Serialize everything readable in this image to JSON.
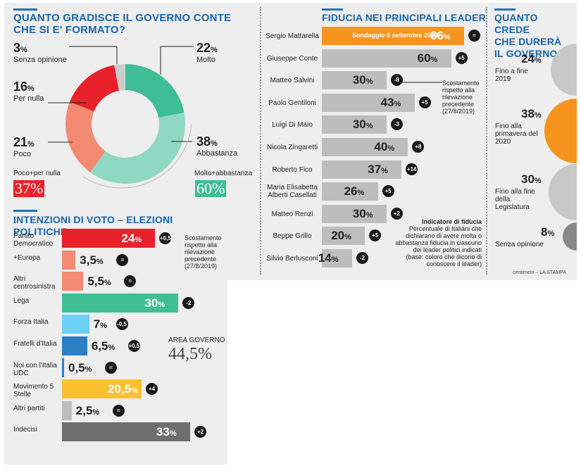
{
  "colors": {
    "accent": "#1565b0",
    "red": "#e8212b",
    "salmon": "#f28b72",
    "teal": "#3fbe96",
    "lightteal": "#8fd8c2",
    "orange": "#f7941d",
    "gray": "#bdbdbd",
    "yellow": "#fbc02d",
    "skyblue": "#6ccff6",
    "blue": "#2a7fc6",
    "darkgray": "#6d6e70"
  },
  "approval": {
    "title1": "QUANTO GRADISCE IL GOVERNO CONTE",
    "title2": "CHE SI E' FORMATO?",
    "items": [
      {
        "pct": "3",
        "label": "Senza opinione"
      },
      {
        "pct": "16",
        "label": "Per nulla"
      },
      {
        "pct": "21",
        "label": "Poco"
      },
      {
        "pct": "22",
        "label": "Molto"
      },
      {
        "pct": "38",
        "label": "Abbastanza"
      }
    ],
    "neg_label": "Poco+per nulla",
    "neg_total": "37%",
    "pos_label": "Molto+abbastanza",
    "pos_total": "60%",
    "pct_sign": "%"
  },
  "chart_data": [
    {
      "type": "pie",
      "title": "QUANTO GRADISCE IL GOVERNO CONTE CHE SI E' FORMATO?",
      "categories": [
        "Molto",
        "Abbastanza",
        "Poco",
        "Per nulla",
        "Senza opinione"
      ],
      "values": [
        22,
        38,
        21,
        16,
        3
      ]
    },
    {
      "type": "bar",
      "title": "INTENZIONI DI VOTO – ELEZIONI POLITICHE",
      "categories": [
        "Partito Democratico",
        "+Europa",
        "Altri centrosinistra",
        "Lega",
        "Forza Italia",
        "Fratelli d'Italia",
        "Noi con l'Italia UDC",
        "Movimento 5 Stelle",
        "Altri partiti",
        "Indecisi"
      ],
      "values": [
        24,
        3.5,
        5.5,
        30,
        7,
        6.5,
        0.5,
        20.5,
        2.5,
        33
      ],
      "changes": [
        "+0,5",
        "=",
        "=",
        "-2",
        "-0,5",
        "+0,5",
        "=",
        "+4",
        "=",
        "+2"
      ]
    },
    {
      "type": "bar",
      "title": "FIDUCIA NEI PRINCIPALI LEADER",
      "categories": [
        "Sergio Mattarella",
        "Giuseppe Conte",
        "Matteo Salvini",
        "Paolo Gentiloni",
        "Luigi Di Maio",
        "Nicola Zingaretti",
        "Roberto Fico",
        "Maria Elisabetta Alberti Casellati",
        "Matteo Renzi",
        "Beppe Grillo",
        "Silvio Berlusconi"
      ],
      "values": [
        66,
        60,
        30,
        43,
        30,
        40,
        37,
        26,
        30,
        20,
        14
      ],
      "changes": [
        "=",
        "+5",
        "-8",
        "+5",
        "-3",
        "+8",
        "+14",
        "+5",
        "+2",
        "+5",
        "-2"
      ]
    },
    {
      "type": "pie",
      "title": "QUANTO CREDE CHE DURERÀ IL GOVERNO",
      "categories": [
        "Fino a fine 2019",
        "Fino alla primavera del 2020",
        "Fino alla fine della Legislatura",
        "Senza opinione"
      ],
      "values": [
        24,
        38,
        30,
        8
      ]
    }
  ],
  "votes": {
    "title": "INTENZIONI DI VOTO – ELEZIONI POLITICHE",
    "rows": [
      {
        "label": "Partito Democratico",
        "value": "24",
        "change": "+0,5"
      },
      {
        "label": "+Europa",
        "value": "3,5",
        "change": "="
      },
      {
        "label": "Altri centrosinistra",
        "value": "5,5",
        "change": "="
      },
      {
        "label": "Lega",
        "value": "30",
        "change": "-2"
      },
      {
        "label": "Forza Italia",
        "value": "7",
        "change": "-0,5"
      },
      {
        "label": "Fratelli d'Italia",
        "value": "6,5",
        "change": "+0,5"
      },
      {
        "label": "Noi con l'Italia UDC",
        "value": "0,5",
        "change": "="
      },
      {
        "label": "Movimento 5 Stelle",
        "value": "20,5",
        "change": "+4"
      },
      {
        "label": "Altri partiti",
        "value": "2,5",
        "change": "="
      },
      {
        "label": "Indecisi",
        "value": "33",
        "change": "+2"
      }
    ],
    "note": "Scostamento rispetto alla rilevazione precedente (27/8/2019)",
    "area_label": "AREA GOVERNO",
    "area_value": "44,5%"
  },
  "leaders": {
    "title": "FIDUCIA NEI PRINCIPALI LEADER",
    "rows": [
      {
        "label": "Sergio Mattarella",
        "value": "66",
        "change": "="
      },
      {
        "label": "Giuseppe Conte",
        "value": "60",
        "change": "+5"
      },
      {
        "label": "Matteo Salvini",
        "value": "30",
        "change": "-8"
      },
      {
        "label": "Paolo Gentiloni",
        "value": "43",
        "change": "+5"
      },
      {
        "label": "Luigi Di Maio",
        "value": "30",
        "change": "-3"
      },
      {
        "label": "Nicola Zingaretti",
        "value": "40",
        "change": "+8"
      },
      {
        "label": "Roberto Fico",
        "value": "37",
        "change": "+14"
      },
      {
        "label": "Maria Elisabetta Alberti Casellati",
        "value": "26",
        "change": "+5"
      },
      {
        "label": "Matteo Renzi",
        "value": "30",
        "change": "+2"
      },
      {
        "label": "Beppe Grillo",
        "value": "20",
        "change": "+5"
      },
      {
        "label": "Silvio Berlusconi",
        "value": "14",
        "change": "-2"
      }
    ],
    "survey_label": "Sondaggio 5 settembre 2019",
    "note": "Scostamento rispetto alla rilevazione precedente (27/8/2019)",
    "indicator_title": "Indicatore di fiducia",
    "indicator_text": "Percentuale di Italiani che dichiarano di avere molta o abbastanza fiducia in ciascuno dei leader politici indicati (base: coloro che dicono di conoscere il leader)"
  },
  "duration": {
    "title1": "QUANTO CREDE",
    "title2": "CHE DURERÀ",
    "title3": "IL GOVERNO",
    "items": [
      {
        "pct": "24",
        "label": "Fino a fine 2019"
      },
      {
        "pct": "38",
        "label": "Fino alla primavera del 2020"
      },
      {
        "pct": "30",
        "label": "Fino alla fine della Legislatura"
      },
      {
        "pct": "8",
        "label": "Senza opinione"
      }
    ],
    "credit": "centimetri – LA STAMPA"
  }
}
